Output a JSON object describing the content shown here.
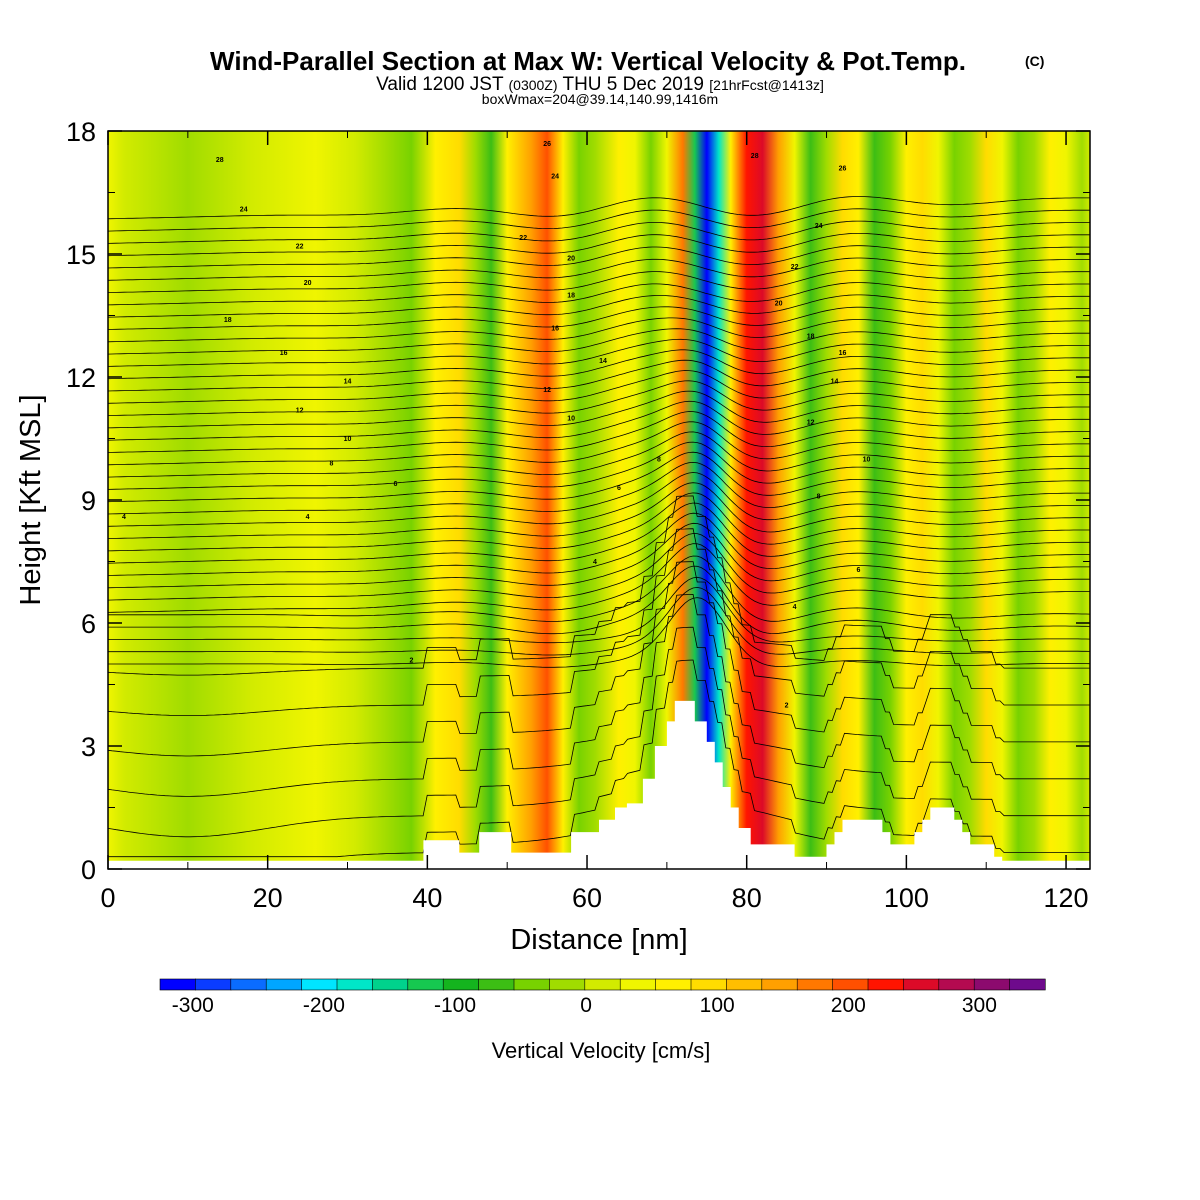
{
  "chart_data": {
    "type": "heatmap",
    "title": "Wind-Parallel Section at Max W: Vertical Velocity & Pot.Temp.",
    "title_mark": "(C)",
    "subtitle_parts": [
      "Valid 1200 JST",
      "(0300Z)",
      "THU 5 Dec 2019",
      "[21hrFcst@1413z]"
    ],
    "subtitle2": "boxWmax=204@39.14,140.99,1416m",
    "xlabel": "Distance [nm]",
    "ylabel": "Height [Kft MSL]",
    "xlim": [
      0,
      123
    ],
    "ylim": [
      0,
      18
    ],
    "xticks": [
      "0",
      "20",
      "40",
      "60",
      "80",
      "100",
      "120"
    ],
    "yticks": [
      "0",
      "3",
      "6",
      "9",
      "12",
      "15",
      "18"
    ],
    "colorbar": {
      "label": "Vertical Velocity [cm/s]",
      "ticks": [
        "-300",
        "-200",
        "-100",
        "0",
        "100",
        "200",
        "300"
      ],
      "range": [
        -325,
        350
      ],
      "step": 25,
      "colors": [
        "#0000ff",
        "#0a3cff",
        "#0a6cff",
        "#00a6ff",
        "#00e5ff",
        "#00e6c8",
        "#00d28c",
        "#16c850",
        "#14b41e",
        "#3cbe14",
        "#78d200",
        "#a0dc00",
        "#d2eb00",
        "#f0f500",
        "#fff000",
        "#ffdc00",
        "#ffbe00",
        "#ffa000",
        "#ff7800",
        "#ff5000",
        "#ff1400",
        "#dc0a28",
        "#b40a50",
        "#8c0a6e",
        "#6e0a8c"
      ]
    },
    "shading_bands": [
      {
        "x": 0,
        "w": 0
      },
      {
        "x": 2,
        "w": -25
      },
      {
        "x": 10,
        "w": -45
      },
      {
        "x": 18,
        "w": -20
      },
      {
        "x": 26,
        "w": 0
      },
      {
        "x": 31,
        "w": -5
      },
      {
        "x": 35,
        "w": -30
      },
      {
        "x": 38,
        "w": -60
      },
      {
        "x": 41,
        "w": 25
      },
      {
        "x": 44,
        "w": 60
      },
      {
        "x": 46,
        "w": -50
      },
      {
        "x": 48,
        "w": -80
      },
      {
        "x": 50,
        "w": 30
      },
      {
        "x": 53,
        "w": 120
      },
      {
        "x": 55,
        "w": 150
      },
      {
        "x": 57,
        "w": 40
      },
      {
        "x": 59,
        "w": -60
      },
      {
        "x": 61,
        "w": -30
      },
      {
        "x": 64,
        "w": 35
      },
      {
        "x": 66,
        "w": 20
      },
      {
        "x": 68,
        "w": -55
      },
      {
        "x": 70,
        "w": 20
      },
      {
        "x": 72,
        "w": 140
      },
      {
        "x": 73.5,
        "w": -150
      },
      {
        "x": 75,
        "w": -330
      },
      {
        "x": 76.5,
        "w": -180
      },
      {
        "x": 78,
        "w": 40
      },
      {
        "x": 80,
        "w": 185
      },
      {
        "x": 82,
        "w": 210
      },
      {
        "x": 84,
        "w": 110
      },
      {
        "x": 86,
        "w": 20
      },
      {
        "x": 88,
        "w": -95
      },
      {
        "x": 90,
        "w": -45
      },
      {
        "x": 92,
        "w": 70
      },
      {
        "x": 94,
        "w": 40
      },
      {
        "x": 96,
        "w": -90
      },
      {
        "x": 98,
        "w": -60
      },
      {
        "x": 100,
        "w": 30
      },
      {
        "x": 102,
        "w": 70
      },
      {
        "x": 104,
        "w": 10
      },
      {
        "x": 106,
        "w": -70
      },
      {
        "x": 108,
        "w": -30
      },
      {
        "x": 110,
        "w": 50
      },
      {
        "x": 112,
        "w": 20
      },
      {
        "x": 114,
        "w": -65
      },
      {
        "x": 116,
        "w": -40
      },
      {
        "x": 118,
        "w": 40
      },
      {
        "x": 120,
        "w": 10
      },
      {
        "x": 122,
        "w": -40
      },
      {
        "x": 123,
        "w": -20
      }
    ],
    "terrain": [
      [
        0,
        0.2
      ],
      [
        39.5,
        0.2
      ],
      [
        39.5,
        0.7
      ],
      [
        44,
        0.7
      ],
      [
        44,
        0.4
      ],
      [
        46.5,
        0.4
      ],
      [
        46.5,
        0.9
      ],
      [
        50.5,
        0.9
      ],
      [
        50.5,
        0.4
      ],
      [
        58,
        0.4
      ],
      [
        58,
        0.9
      ],
      [
        61.5,
        0.9
      ],
      [
        61.5,
        1.2
      ],
      [
        63.5,
        1.2
      ],
      [
        63.5,
        1.5
      ],
      [
        65,
        1.5
      ],
      [
        65,
        1.6
      ],
      [
        67,
        1.6
      ],
      [
        67,
        2.2
      ],
      [
        68.5,
        2.2
      ],
      [
        68.5,
        3.0
      ],
      [
        70,
        3.0
      ],
      [
        70,
        3.6
      ],
      [
        71,
        3.6
      ],
      [
        71,
        4.1
      ],
      [
        73.5,
        4.1
      ],
      [
        73.5,
        3.6
      ],
      [
        75,
        3.6
      ],
      [
        75,
        3.1
      ],
      [
        76,
        3.1
      ],
      [
        76,
        2.6
      ],
      [
        77,
        2.6
      ],
      [
        77,
        2.0
      ],
      [
        78,
        2.0
      ],
      [
        78,
        1.5
      ],
      [
        79,
        1.5
      ],
      [
        79,
        1.0
      ],
      [
        80.5,
        1.0
      ],
      [
        80.5,
        0.6
      ],
      [
        86,
        0.6
      ],
      [
        86,
        0.3
      ],
      [
        90,
        0.3
      ],
      [
        90,
        0.6
      ],
      [
        91,
        0.6
      ],
      [
        91,
        0.9
      ],
      [
        92,
        0.9
      ],
      [
        92,
        1.2
      ],
      [
        97,
        1.2
      ],
      [
        97,
        0.9
      ],
      [
        98,
        0.9
      ],
      [
        98,
        0.6
      ],
      [
        101,
        0.6
      ],
      [
        101,
        0.9
      ],
      [
        102,
        0.9
      ],
      [
        102,
        1.2
      ],
      [
        103,
        1.2
      ],
      [
        103,
        1.5
      ],
      [
        106,
        1.5
      ],
      [
        106,
        1.2
      ],
      [
        107,
        1.2
      ],
      [
        107,
        0.9
      ],
      [
        108,
        0.9
      ],
      [
        108,
        0.6
      ],
      [
        111,
        0.6
      ],
      [
        111,
        0.3
      ],
      [
        112,
        0.3
      ],
      [
        112,
        0.2
      ],
      [
        123,
        0.2
      ]
    ],
    "theta_contours": {
      "count": 44,
      "base_height": 5.0,
      "spacing": 0.3
    },
    "contour_labels": [
      {
        "text": "28",
        "x": 14,
        "y": 17.3
      },
      {
        "text": "24",
        "x": 17,
        "y": 16.1
      },
      {
        "text": "22",
        "x": 24,
        "y": 15.2
      },
      {
        "text": "20",
        "x": 25,
        "y": 14.3
      },
      {
        "text": "18",
        "x": 15,
        "y": 13.4
      },
      {
        "text": "16",
        "x": 22,
        "y": 12.6
      },
      {
        "text": "14",
        "x": 30,
        "y": 11.9
      },
      {
        "text": "12",
        "x": 24,
        "y": 11.2
      },
      {
        "text": "10",
        "x": 30,
        "y": 10.5
      },
      {
        "text": "8",
        "x": 28,
        "y": 9.9
      },
      {
        "text": "6",
        "x": 36,
        "y": 9.4
      },
      {
        "text": "4",
        "x": 2,
        "y": 8.6
      },
      {
        "text": "4",
        "x": 25,
        "y": 8.6
      },
      {
        "text": "2",
        "x": 38,
        "y": 5.1
      },
      {
        "text": "26",
        "x": 55,
        "y": 17.7
      },
      {
        "text": "24",
        "x": 56,
        "y": 16.9
      },
      {
        "text": "22",
        "x": 52,
        "y": 15.4
      },
      {
        "text": "20",
        "x": 58,
        "y": 14.9
      },
      {
        "text": "18",
        "x": 58,
        "y": 14.0
      },
      {
        "text": "16",
        "x": 56,
        "y": 13.2
      },
      {
        "text": "14",
        "x": 62,
        "y": 12.4
      },
      {
        "text": "12",
        "x": 55,
        "y": 11.7
      },
      {
        "text": "10",
        "x": 58,
        "y": 11.0
      },
      {
        "text": "8",
        "x": 69,
        "y": 10.0
      },
      {
        "text": "6",
        "x": 64,
        "y": 9.3
      },
      {
        "text": "4",
        "x": 61,
        "y": 7.5
      },
      {
        "text": "28",
        "x": 81,
        "y": 17.4
      },
      {
        "text": "26",
        "x": 92,
        "y": 17.1
      },
      {
        "text": "24",
        "x": 89,
        "y": 15.7
      },
      {
        "text": "22",
        "x": 86,
        "y": 14.7
      },
      {
        "text": "20",
        "x": 84,
        "y": 13.8
      },
      {
        "text": "18",
        "x": 88,
        "y": 13.0
      },
      {
        "text": "16",
        "x": 92,
        "y": 12.6
      },
      {
        "text": "14",
        "x": 91,
        "y": 11.9
      },
      {
        "text": "12",
        "x": 88,
        "y": 10.9
      },
      {
        "text": "10",
        "x": 95,
        "y": 10.0
      },
      {
        "text": "8",
        "x": 89,
        "y": 9.1
      },
      {
        "text": "6",
        "x": 94,
        "y": 7.3
      },
      {
        "text": "4",
        "x": 86,
        "y": 6.4
      },
      {
        "text": "2",
        "x": 85,
        "y": 4.0
      }
    ]
  }
}
